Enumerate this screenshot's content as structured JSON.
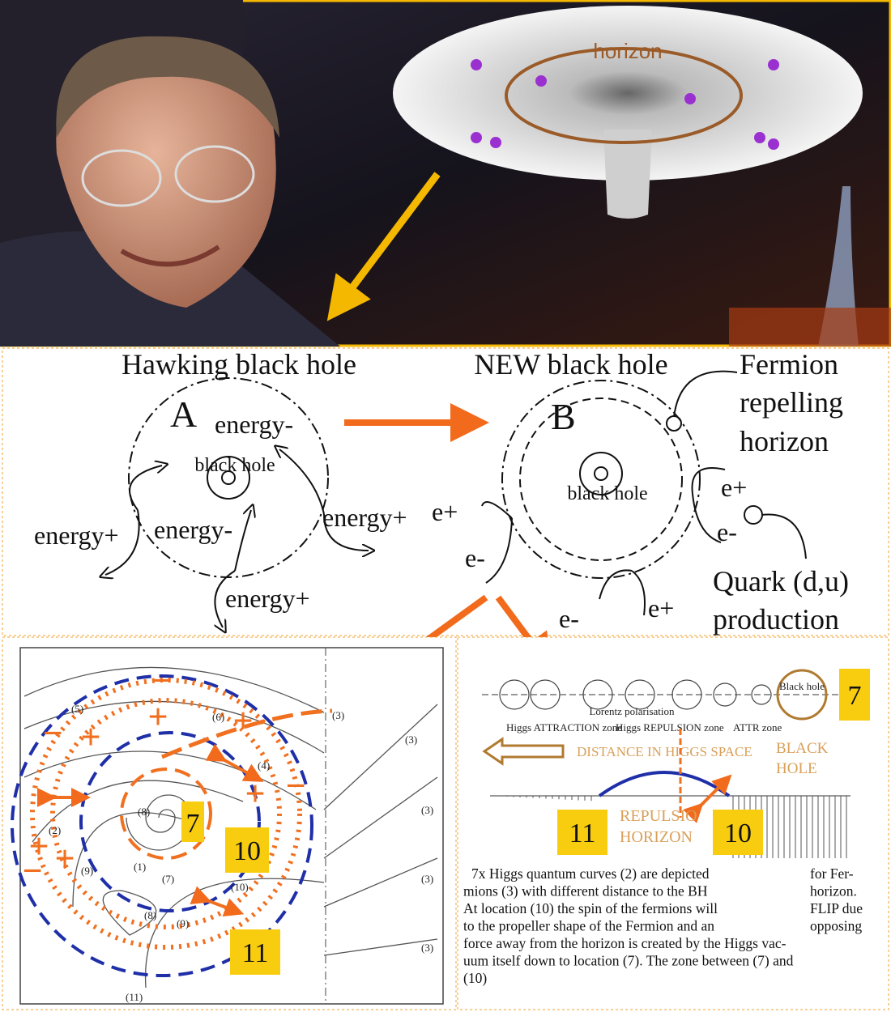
{
  "photo_panel": {
    "funnel_label": "horizon"
  },
  "hawking": {
    "title": "Hawking black hole",
    "letter": "A",
    "core": "black hole",
    "labels": [
      "energy-",
      "energy+",
      "energy-",
      "energy+",
      "energy+"
    ]
  },
  "new_bh": {
    "title": "NEW black hole",
    "letter": "B",
    "core": "black hole",
    "fermion_label": [
      "Fermion",
      "repelling",
      "horizon"
    ],
    "particles": [
      "e+",
      "e-",
      "e-",
      "e+",
      "e+",
      "e-"
    ],
    "quark_label": [
      "Quark (d,u)",
      "production"
    ]
  },
  "field_diagram": {
    "badges": [
      "7",
      "10",
      "11"
    ],
    "curve_labels": [
      "(5)",
      "(6)",
      "(3)",
      "(3)",
      "(4)",
      "(8)",
      "(2)",
      "(1)",
      "(7)",
      "(9)",
      "(8)",
      "(9)",
      "(10)",
      "(3)",
      "(3)",
      "(3)",
      "(11)"
    ],
    "signs": [
      "−",
      "+",
      "−",
      "+",
      "+",
      "−",
      "+",
      "−",
      "+",
      "+"
    ]
  },
  "higgs_diagram": {
    "badges": [
      "7",
      "11",
      "10"
    ],
    "distance_label": "DISTANCE IN HIGGS SPACE",
    "black_hole_label": [
      "BLACK",
      "HOLE"
    ],
    "repulsion_label": [
      "REPULSIO",
      "HORIZON"
    ],
    "small_labels": [
      "Lorentz polarisation",
      "Higgs ATTRACTION zone",
      "Higgs REPULSION zone",
      "ATTR zone",
      "Black hole"
    ],
    "caption": [
      [
        "7x Higgs quantum curves (2) are depicted",
        "for Fer-"
      ],
      [
        "mions (3) with different distance to the BH",
        "horizon."
      ],
      [
        "At location (10) the spin of the fermions will",
        "FLIP due"
      ],
      [
        "to the propeller shape of the Fermion and an",
        "opposing"
      ],
      [
        "force away from the horizon is created by the Higgs vac-",
        ""
      ],
      [
        "uum itself down to location (7). The zone between (7) and",
        ""
      ],
      [
        "(10)",
        ""
      ]
    ]
  }
}
